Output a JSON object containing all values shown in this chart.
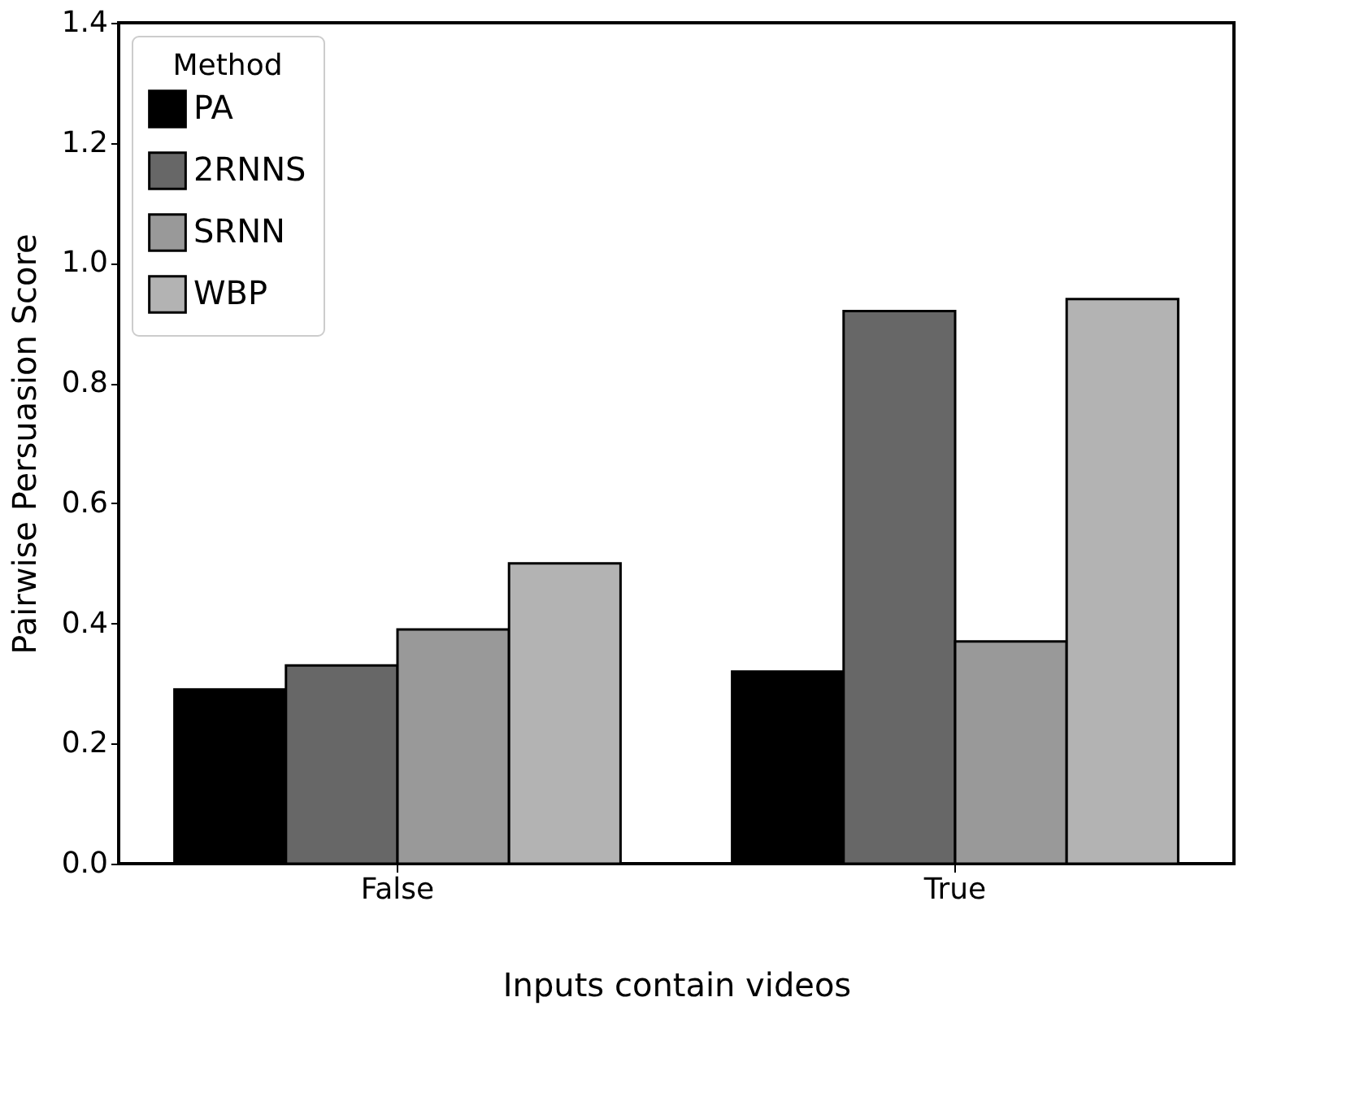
{
  "chart_data": {
    "type": "bar",
    "xlabel": "Inputs contain videos",
    "ylabel": "Pairwise Persuasion Score",
    "legend_title": "Method",
    "categories": [
      "False",
      "True"
    ],
    "series": [
      {
        "name": "PA",
        "color": "#000000",
        "values": [
          0.29,
          0.32
        ]
      },
      {
        "name": "2RNNS",
        "color": "#676767",
        "values": [
          0.33,
          0.92
        ]
      },
      {
        "name": "SRNN",
        "color": "#999999",
        "values": [
          0.39,
          0.37
        ]
      },
      {
        "name": "WBP",
        "color": "#b3b3b3",
        "values": [
          0.5,
          0.94
        ]
      }
    ],
    "ylim": [
      0,
      1.4
    ],
    "yticks": [
      {
        "value": 0,
        "label": "0.0"
      },
      0.2,
      0.4,
      0.6,
      0.8,
      {
        "value": 1,
        "label": "1.0"
      },
      1.2,
      1.4
    ],
    "grid": false,
    "legend": "top left"
  }
}
